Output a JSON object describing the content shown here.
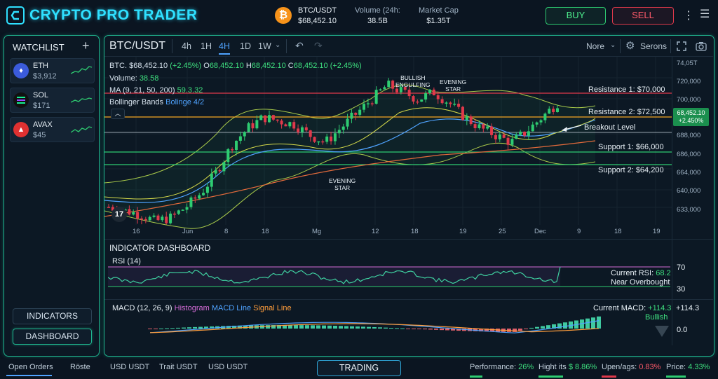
{
  "app": {
    "title": "CRYPTO PRO TRADER"
  },
  "header": {
    "coin_symbol": "₿",
    "pair": "BTC/USDT",
    "price": "$68,452.10",
    "volume_label": "Volume (24h:",
    "volume_value": "38.5B",
    "mcap_label": "Market Cap",
    "mcap_value": "$1.35T",
    "buy_label": "BUY",
    "sell_label": "SELL"
  },
  "watchlist": {
    "title": "WATCHLIST",
    "items": [
      {
        "symbol": "ETH",
        "price": "$3,912",
        "icon": "ethereum-icon",
        "color": "#3b5bdb"
      },
      {
        "symbol": "SOL",
        "price": "$171",
        "icon": "solana-icon",
        "color": "#111111"
      },
      {
        "symbol": "AVAX",
        "price": "$45",
        "icon": "avalanche-icon",
        "color": "#e03131"
      }
    ],
    "indicators_label": "INDICATORS",
    "dashboard_label": "DASHBOARD"
  },
  "chart_header": {
    "pair": "BTC/USDT",
    "timeframes": [
      "4h",
      "1H",
      "4H",
      "1D",
      "1W"
    ],
    "active_timeframe": "4H",
    "dropdown_label": "Nore",
    "settings_label": "Serons"
  },
  "chart_info": {
    "symbol_price": "BTC. $68,452.10",
    "change": "(+2.45%)",
    "open_label": "O",
    "open": "68,452.10",
    "high_label": "H",
    "high": "68,452.10",
    "close_label": "C",
    "close": "68,452.10 (+2.45%)",
    "volume_label": "Volume:",
    "volume": "38.58",
    "ma_label": "MA (9, 21, 50, 200)",
    "ma_value": "59.3.32",
    "bb_label": "Bollinger Bands",
    "bb_value": "Bolinge 4/2"
  },
  "levels": {
    "resistance1": "Resistance 1: $70,000",
    "resistance2": "Resistance 2: $72,500",
    "breakout": "Breakout Level",
    "support1": "Support 1: $66,000",
    "support2": "Support 2: $64,200"
  },
  "annotations": {
    "bullish": "BULLISH\nENGULFING",
    "evening1": "EVENING\nSTAR",
    "evening2": "EVENING\nSTAR"
  },
  "price_tag": {
    "price": "68,452.10",
    "change": "+2.450%"
  },
  "price_axis": [
    "74,05T",
    "720,000",
    "700,000",
    "688,000",
    "686,000",
    "664,000",
    "640,000",
    "633,000"
  ],
  "time_axis": [
    "16",
    "Jun",
    "8",
    "18",
    "Mg",
    "12",
    "18",
    "19",
    "25",
    "Dec",
    "9",
    "18",
    "19"
  ],
  "indicators": {
    "title": "INDICATOR DASHBOARD",
    "rsi_label": "RSI (14)",
    "rsi_current_label": "Current RSI:",
    "rsi_current": "68.2",
    "rsi_status": "Near Overbought",
    "rsi_axis": [
      "70",
      "30"
    ],
    "macd_label": "MACD (12, 26, 9)",
    "macd_hist": "Histogram",
    "macd_line": "MACD Line",
    "macd_signal": "Signal Line",
    "macd_current_label": "Current MACD:",
    "macd_current": "+114.3",
    "macd_status": "Bullish",
    "macd_axis": [
      "+114.3",
      "0.0"
    ]
  },
  "bottom_bar": {
    "tabs": [
      "Open Orders",
      "Röste",
      "USD USDT",
      "Trait USDT",
      "USD USDT"
    ],
    "trading_label": "TRADING",
    "stats": [
      {
        "label": "Performance:",
        "value": "26%",
        "fill": 0.26
      },
      {
        "label": "Hight its",
        "value": "$ 8.86%",
        "fill": 0.5
      },
      {
        "label": "Upen/ags:",
        "value": "0.83%",
        "fill": 0.3
      },
      {
        "label": "Price:",
        "value": "4.33%",
        "fill": 0.4
      }
    ]
  },
  "colors": {
    "accent": "#1fb58f",
    "bull": "#2ecc71",
    "bear": "#e0394b",
    "brand": "#2fe0ff"
  },
  "chart_data": {
    "type": "candlestick",
    "title": "BTC/USDT",
    "ylabel": "",
    "y_ticks": [
      "74,05T",
      "720,000",
      "700,000",
      "688,000",
      "686,000",
      "664,000",
      "640,000",
      "633,000"
    ],
    "x_ticks": [
      "16",
      "Jun",
      "8",
      "18",
      "Mg",
      "12",
      "18",
      "19",
      "25",
      "Dec",
      "9",
      "18",
      "19"
    ],
    "close_trend": [
      640,
      638,
      636,
      632,
      634,
      640,
      648,
      660,
      675,
      684,
      690,
      688,
      686,
      680,
      676,
      684,
      692,
      700,
      708,
      704,
      700,
      704,
      698,
      690,
      684,
      680,
      676,
      682,
      690,
      698
    ],
    "horizontal_levels": [
      {
        "label": "Resistance 1: $70,000",
        "color": "#e0394b"
      },
      {
        "label": "Resistance 2: $72,500",
        "color": "#f5a623"
      },
      {
        "label": "Breakout Level",
        "color": "#c8d3dc"
      },
      {
        "label": "Support 1: $66,000",
        "color": "#2ecc71"
      },
      {
        "label": "Support 2: $64,200",
        "color": "#2ecc71"
      }
    ],
    "grid": true
  }
}
